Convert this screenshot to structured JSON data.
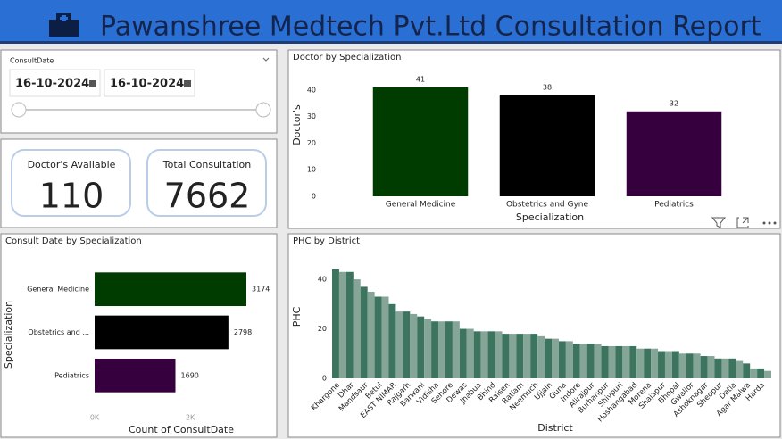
{
  "header": {
    "title": "Pawanshree Medtech Pvt.Ltd Consultation Report"
  },
  "slicer": {
    "label": "ConsultDate",
    "start": "16-10-2024",
    "end": "16-10-2024"
  },
  "cards": [
    {
      "label": "Doctor's Available",
      "value": 110
    },
    {
      "label": "Total Consultation",
      "value": 7662
    }
  ],
  "chart_data": [
    {
      "type": "bar",
      "title": "Doctor by Specialization",
      "categories": [
        "General Medicine",
        "Obstetrics and Gyne",
        "Pediatrics"
      ],
      "values": [
        41,
        38,
        32
      ],
      "colors": [
        "#003c00",
        "#000000",
        "#36003e"
      ],
      "ylim": [
        0,
        41
      ],
      "yticks": [
        0,
        10,
        20,
        30,
        40
      ],
      "y_label": "Doctor's",
      "x_label": "Specialization",
      "data_labels": true
    },
    {
      "type": "bar",
      "orientation": "horizontal",
      "title": "Consult Date by Specialization",
      "categories": [
        "General Medicine",
        "Obstetrics and ...",
        "Pediatrics"
      ],
      "values": [
        3174,
        2798,
        1690
      ],
      "colors": [
        "#003c00",
        "#000000",
        "#36003e"
      ],
      "xlim": [
        0,
        3174
      ],
      "xticks": [
        {
          "value": 0,
          "label": "0K"
        },
        {
          "value": 2000,
          "label": "2K"
        }
      ],
      "y_label": "Specialization",
      "x_label": "Count of ConsultDate",
      "data_labels": true
    },
    {
      "type": "bar",
      "title": "PHC by District",
      "categories": [
        "Khargone",
        null,
        "Dhar",
        null,
        "Mandsaur",
        null,
        "Betul",
        null,
        "EAST NIMAR",
        null,
        "Rajgarh",
        null,
        "Barwani",
        null,
        "Vidisha",
        null,
        "Sehore",
        null,
        "Dewas",
        null,
        "Jhabua",
        null,
        "Bhind",
        null,
        "Raisen",
        null,
        "Ratlam",
        null,
        "Neemuch",
        null,
        "Ujjain",
        null,
        "Guna",
        null,
        "Indore",
        null,
        "Alirajpur",
        null,
        "Burhanpur",
        null,
        "Shivpuri",
        null,
        "Hoshangabad",
        null,
        "Morena",
        null,
        "Shajapur",
        null,
        "Bhopal",
        null,
        "Gwalior",
        null,
        "Ashoknagar",
        null,
        "Sheopur",
        null,
        "Datia",
        null,
        "Agar Malwa",
        null,
        "Harda",
        null
      ],
      "values": [
        44,
        43,
        43,
        40,
        37,
        35,
        33,
        33,
        30,
        27,
        27,
        26,
        25,
        24,
        23,
        23,
        23,
        23,
        20,
        20,
        19,
        19,
        19,
        19,
        18,
        18,
        18,
        18,
        18,
        17,
        16,
        16,
        15,
        15,
        14,
        14,
        14,
        14,
        13,
        13,
        13,
        13,
        13,
        12,
        12,
        12,
        11,
        11,
        11,
        10,
        10,
        10,
        9,
        9,
        8,
        8,
        8,
        7,
        6,
        4,
        4,
        3
      ],
      "colors": [
        "#3d7460",
        "#85a697"
      ],
      "ylim": [
        0,
        44
      ],
      "yticks": [
        0,
        20,
        40
      ],
      "y_label": "PHC",
      "x_label": "District"
    }
  ]
}
